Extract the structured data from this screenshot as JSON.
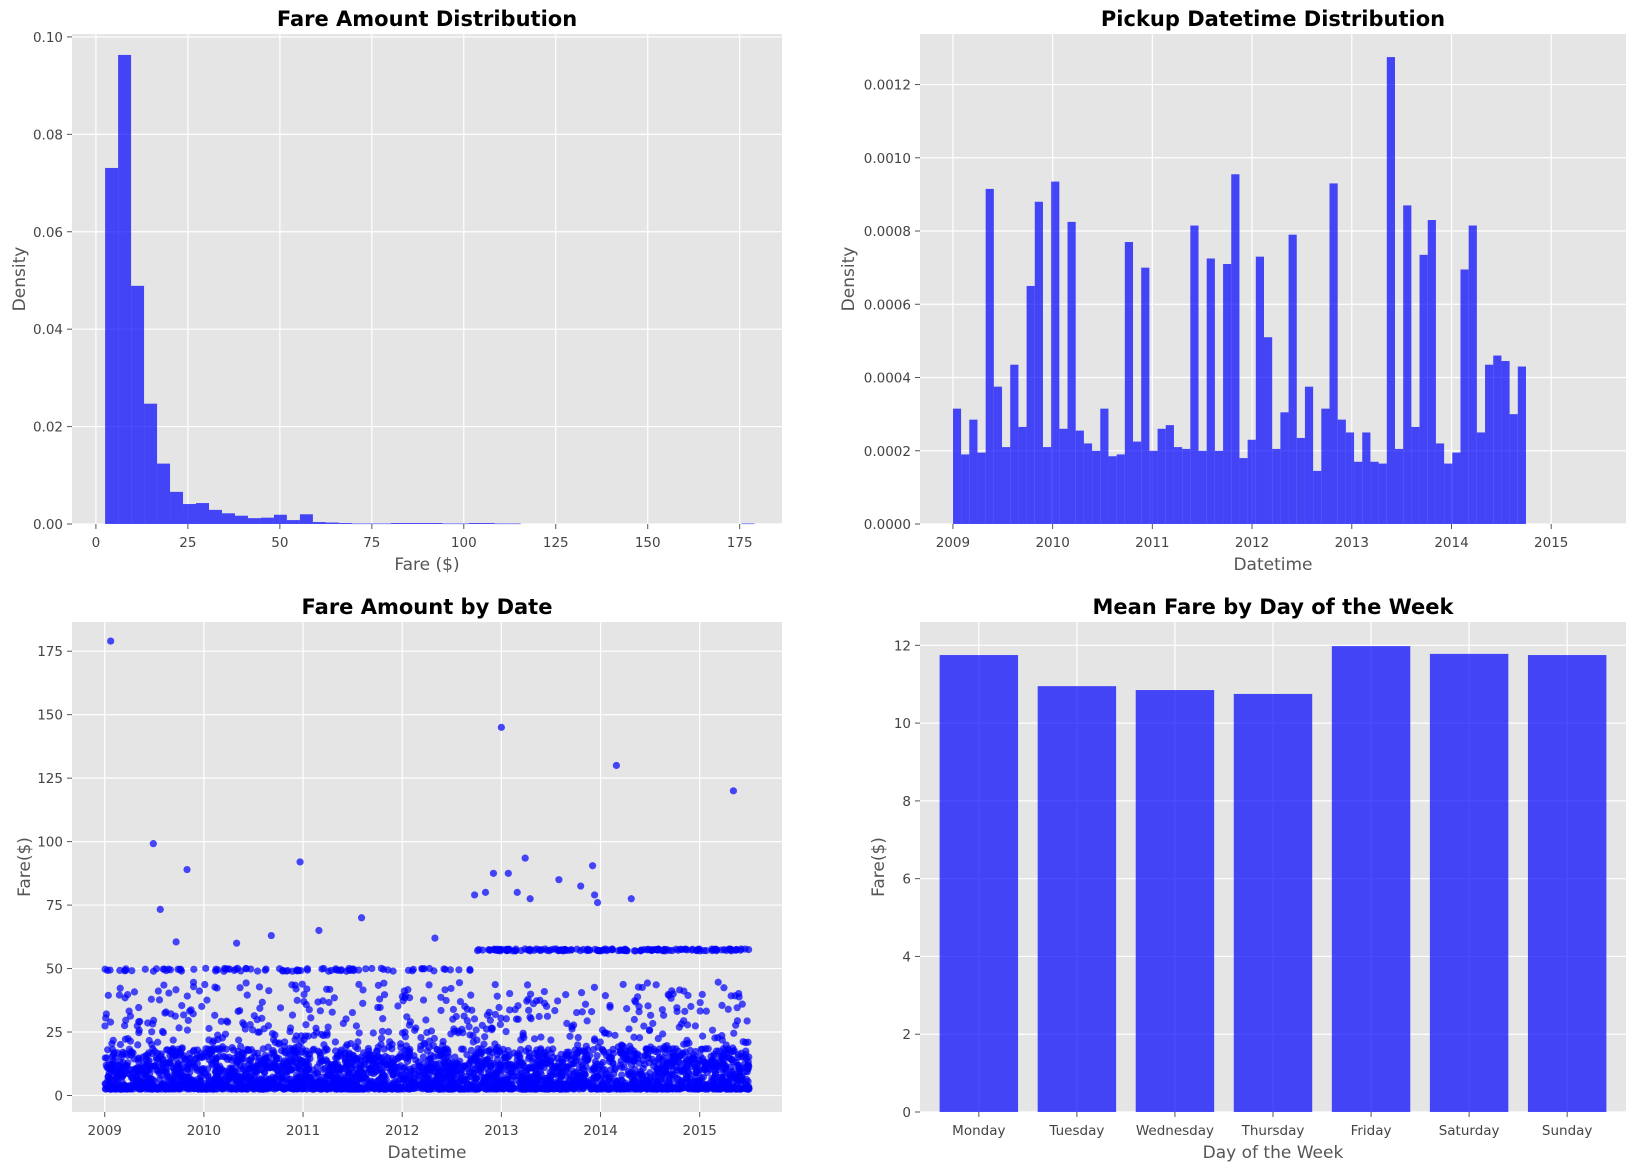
{
  "figure": {
    "background": "#ffffff",
    "plot_background": "#e5e5e5",
    "bar_color": "#0000ff",
    "bar_alpha": 0.7
  },
  "chart_data": [
    {
      "id": "fare-hist",
      "type": "bar",
      "subtype": "histogram",
      "title": "Fare Amount Distribution",
      "xlabel": "Fare ($)",
      "ylabel": "Density",
      "xlim": [
        -6.5,
        186.5
      ],
      "ylim": [
        0,
        0.1006
      ],
      "xticks": [
        0,
        25,
        50,
        75,
        100,
        125,
        150,
        175
      ],
      "xtick_labels": [
        "0",
        "25",
        "50",
        "75",
        "100",
        "125",
        "150",
        "175"
      ],
      "yticks": [
        0,
        0.02,
        0.04,
        0.06,
        0.08,
        0.1
      ],
      "ytick_labels": [
        "0.00",
        "0.02",
        "0.04",
        "0.06",
        "0.08",
        "0.10"
      ],
      "bin_start": 2.5,
      "bin_width": 3.53,
      "values": [
        0.0731,
        0.0963,
        0.0489,
        0.0247,
        0.0124,
        0.0066,
        0.0041,
        0.0043,
        0.0029,
        0.0022,
        0.0017,
        0.0012,
        0.0013,
        0.0019,
        0.0008,
        0.002,
        0.0004,
        0.0003,
        0.0002,
        0.0001,
        0.0001,
        0.0001,
        0.0002,
        0.0002,
        0.0002,
        0.0002,
        0.0001,
        0.0001,
        0.0002,
        0.0002,
        0.0001,
        0.0001,
        0,
        0,
        0,
        0,
        0,
        0,
        0,
        0,
        0,
        0,
        0,
        0,
        0,
        0,
        0,
        0,
        0,
        0.0001
      ],
      "grid": true
    },
    {
      "id": "datetime-hist",
      "type": "bar",
      "subtype": "histogram",
      "title": "Pickup Datetime Distribution",
      "xlabel": "Datetime",
      "ylabel": "Density",
      "xlim": [
        2008.67,
        2015.75
      ],
      "ylim": [
        0,
        0.001338
      ],
      "xticks": [
        2009,
        2010,
        2011,
        2012,
        2013,
        2014,
        2015
      ],
      "xtick_labels": [
        "2009",
        "2010",
        "2011",
        "2012",
        "2013",
        "2014",
        "2015"
      ],
      "yticks": [
        0,
        0.0002,
        0.0004,
        0.0006,
        0.0008,
        0.001,
        0.0012
      ],
      "ytick_labels": [
        "0.0000",
        "0.0002",
        "0.0004",
        "0.0006",
        "0.0008",
        "0.0010",
        "0.0012"
      ],
      "bin_start": 2009.0,
      "bin_width": 0.0821,
      "values": [
        0.000315,
        0.00019,
        0.000285,
        0.000195,
        0.000915,
        0.000375,
        0.00021,
        0.000435,
        0.000265,
        0.00065,
        0.00088,
        0.00021,
        0.000935,
        0.00026,
        0.000825,
        0.000255,
        0.00022,
        0.0002,
        0.000315,
        0.000185,
        0.00019,
        0.00077,
        0.000225,
        0.0007,
        0.0002,
        0.00026,
        0.00027,
        0.00021,
        0.000205,
        0.000815,
        0.0002,
        0.000725,
        0.0002,
        0.00071,
        0.000955,
        0.00018,
        0.00023,
        0.00073,
        0.00051,
        0.000205,
        0.000305,
        0.00079,
        0.000235,
        0.000375,
        0.000145,
        0.000315,
        0.00093,
        0.000285,
        0.00025,
        0.00017,
        0.00025,
        0.00017,
        0.000165,
        0.001275,
        0.000205,
        0.00087,
        0.000265,
        0.000735,
        0.00083,
        0.00022,
        0.000165,
        0.000195,
        0.000695,
        0.000815,
        0.00025,
        0.000435,
        0.00046,
        0.000445,
        0.0003,
        0.00043
      ],
      "grid": true
    },
    {
      "id": "fare-scatter",
      "type": "scatter",
      "title": "Fare Amount by Date",
      "xlabel": "Datetime",
      "ylabel": "Fare($)",
      "xlim": [
        2008.67,
        2015.83
      ],
      "ylim": [
        -6.5,
        186.5
      ],
      "xticks": [
        2009,
        2010,
        2011,
        2012,
        2013,
        2014,
        2015
      ],
      "xtick_labels": [
        "2009",
        "2010",
        "2011",
        "2012",
        "2013",
        "2014",
        "2015"
      ],
      "yticks": [
        0,
        25,
        50,
        75,
        100,
        125,
        150,
        175
      ],
      "ytick_labels": [
        "0",
        "25",
        "50",
        "75",
        "100",
        "125",
        "150",
        "175"
      ],
      "x_range": [
        2009.0,
        2015.5
      ],
      "typical_fare_range": [
        2.5,
        57.33
      ],
      "notable_points": [
        {
          "x": 2009.06,
          "y": 179
        },
        {
          "x": 2009.49,
          "y": 99.2
        },
        {
          "x": 2009.56,
          "y": 73.3
        },
        {
          "x": 2009.72,
          "y": 60.5
        },
        {
          "x": 2009.83,
          "y": 89
        },
        {
          "x": 2010.33,
          "y": 60
        },
        {
          "x": 2010.68,
          "y": 63
        },
        {
          "x": 2010.97,
          "y": 92
        },
        {
          "x": 2011.16,
          "y": 65
        },
        {
          "x": 2011.59,
          "y": 70
        },
        {
          "x": 2012.33,
          "y": 62
        },
        {
          "x": 2012.73,
          "y": 79
        },
        {
          "x": 2012.84,
          "y": 80
        },
        {
          "x": 2012.92,
          "y": 87.5
        },
        {
          "x": 2013.0,
          "y": 145
        },
        {
          "x": 2013.07,
          "y": 87.5
        },
        {
          "x": 2013.16,
          "y": 80
        },
        {
          "x": 2013.24,
          "y": 93.5
        },
        {
          "x": 2013.29,
          "y": 77.5
        },
        {
          "x": 2013.58,
          "y": 85
        },
        {
          "x": 2013.8,
          "y": 82.5
        },
        {
          "x": 2013.92,
          "y": 90.5
        },
        {
          "x": 2013.94,
          "y": 79
        },
        {
          "x": 2013.97,
          "y": 76
        },
        {
          "x": 2014.16,
          "y": 130
        },
        {
          "x": 2014.31,
          "y": 77.5
        },
        {
          "x": 2015.34,
          "y": 120
        }
      ],
      "grid": true
    },
    {
      "id": "weekday-bar",
      "type": "bar",
      "title": "Mean Fare by Day of the Week",
      "xlabel": "Day of the Week",
      "ylabel": "Fare($)",
      "ylim": [
        0,
        12.6
      ],
      "yticks": [
        0,
        2,
        4,
        6,
        8,
        10,
        12
      ],
      "ytick_labels": [
        "0",
        "2",
        "4",
        "6",
        "8",
        "10",
        "12"
      ],
      "categories": [
        "Monday",
        "Tuesday",
        "Wednesday",
        "Thursday",
        "Friday",
        "Saturday",
        "Sunday"
      ],
      "values": [
        11.75,
        10.95,
        10.85,
        10.75,
        11.98,
        11.78,
        11.75
      ],
      "grid": true
    }
  ]
}
